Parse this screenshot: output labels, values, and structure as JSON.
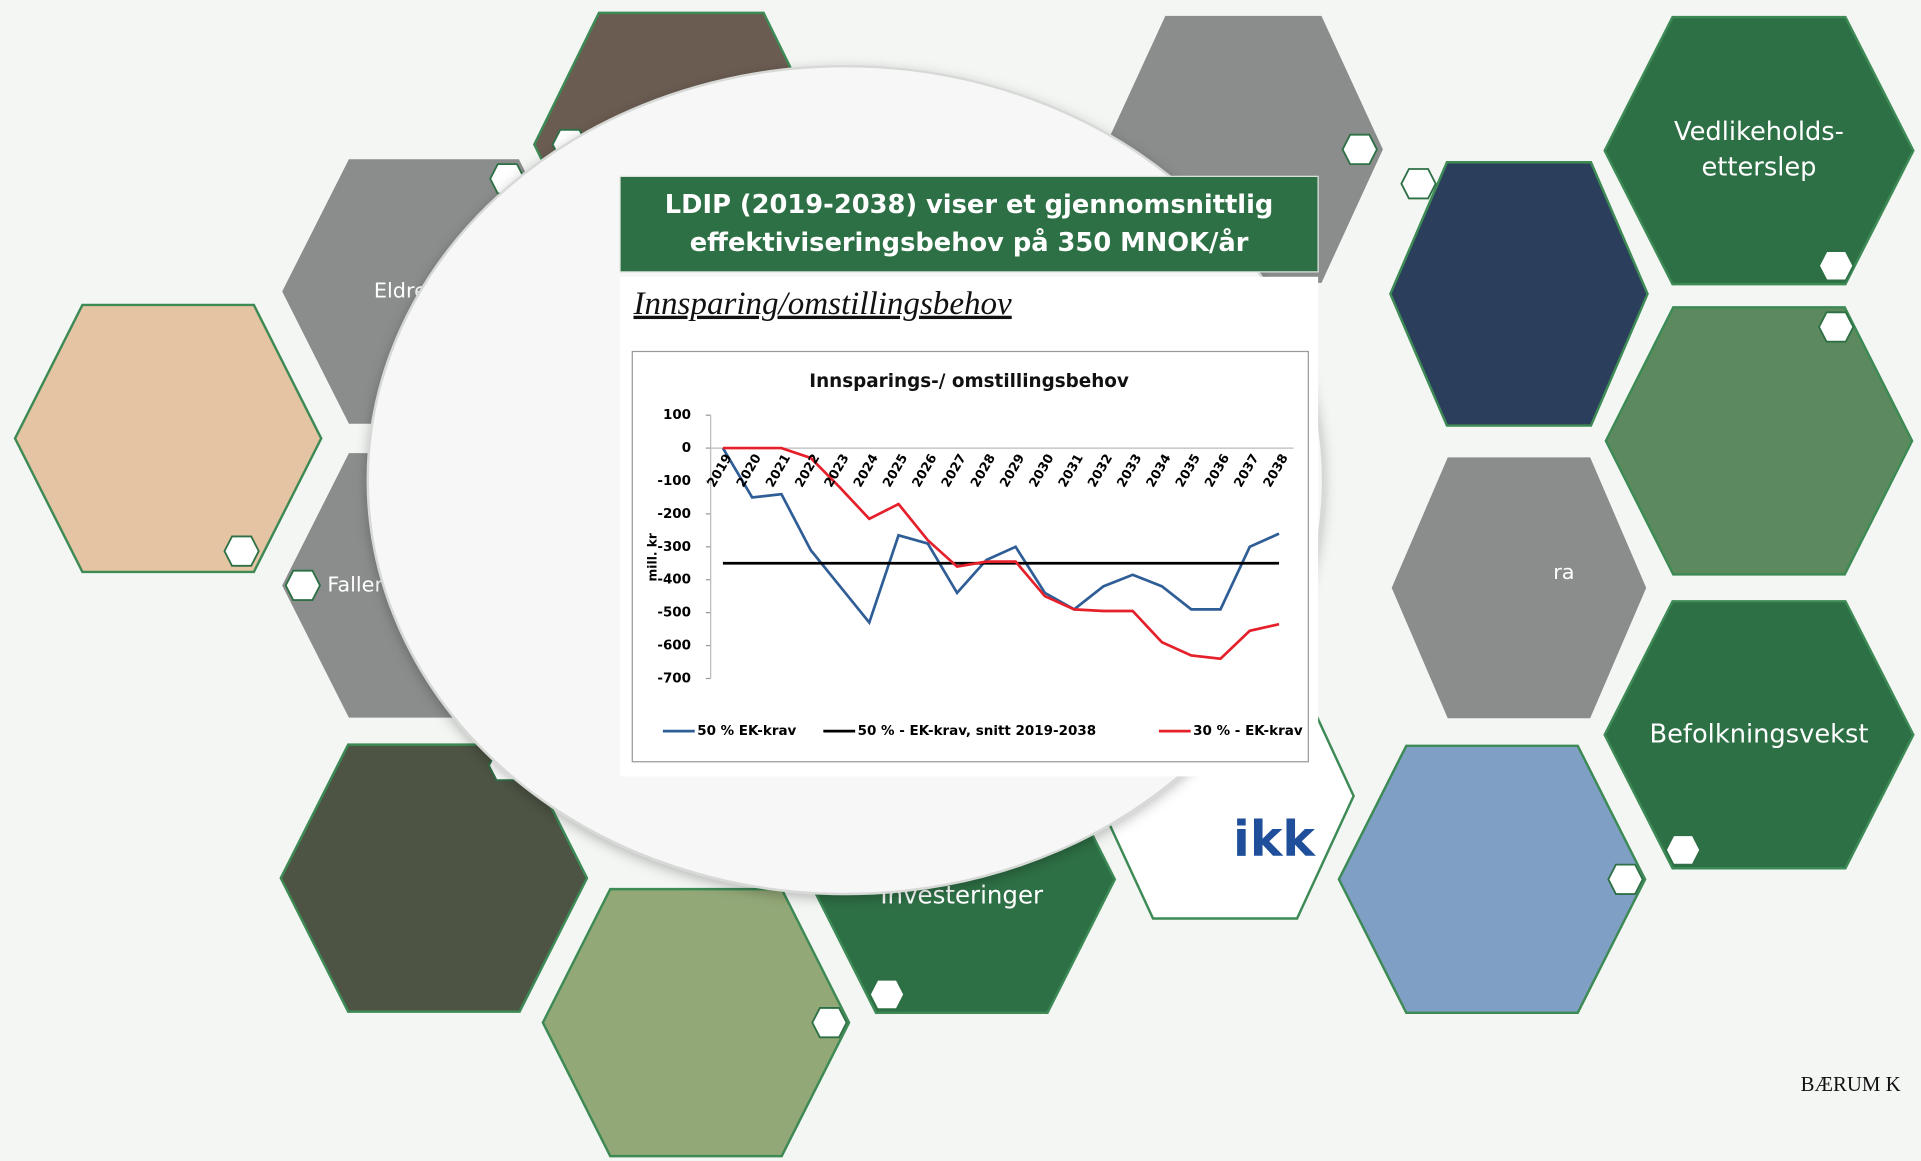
{
  "slide": {
    "box_title": [
      "LDIP (2019-2038) viser et gjennomsnittlig",
      "effektiviseringsbehov på 350 MNOK/år"
    ],
    "subheading": "Innsparing/omstillingsbehov",
    "hexagon_labels": {
      "maintenance": [
        "Vedlikeholds-",
        "etterslep"
      ],
      "population": "Befolkningsvekst",
      "elderly": "Eldreb",
      "falling": "Faller",
      "right": "ra",
      "investments": "Investeringer",
      "logo": "ikk"
    },
    "footer": "BÆRUM K"
  },
  "chart_data": {
    "type": "line",
    "title": "Innsparings-/ omstillingsbehov",
    "y_label": "mill. kr",
    "categories": [
      "2019",
      "2020",
      "2021",
      "2022",
      "2023",
      "2024",
      "2025",
      "2026",
      "2027",
      "2028",
      "2029",
      "2030",
      "2031",
      "2032",
      "2033",
      "2034",
      "2035",
      "2036",
      "2037",
      "2038"
    ],
    "series": [
      {
        "name": "50 % EK-krav",
        "color": "#2f5d96",
        "values": [
          0,
          -150,
          -140,
          -310,
          -420,
          -530,
          -265,
          -290,
          -440,
          -340,
          -300,
          -440,
          -490,
          -420,
          -385,
          -420,
          -490,
          -490,
          -300,
          -260
        ]
      },
      {
        "name": "50 % -  EK-krav, snitt 2019-2038",
        "color": "#000000",
        "values": [
          -350,
          -350,
          -350,
          -350,
          -350,
          -350,
          -350,
          -350,
          -350,
          -350,
          -350,
          -350,
          -350,
          -350,
          -350,
          -350,
          -350,
          -350,
          -350,
          -350
        ]
      },
      {
        "name": "30 % - EK-krav",
        "color": "#e5202a",
        "values": [
          0,
          0,
          0,
          -30,
          -120,
          -215,
          -170,
          -280,
          -360,
          -345,
          -345,
          -450,
          -490,
          -495,
          -495,
          -590,
          -630,
          -640,
          -555,
          -535
        ]
      }
    ],
    "ylim": [
      -700,
      100
    ],
    "yticks": [
      100,
      0,
      -100,
      -200,
      -300,
      -400,
      -500,
      -600,
      -700
    ],
    "legend": "bottom"
  }
}
